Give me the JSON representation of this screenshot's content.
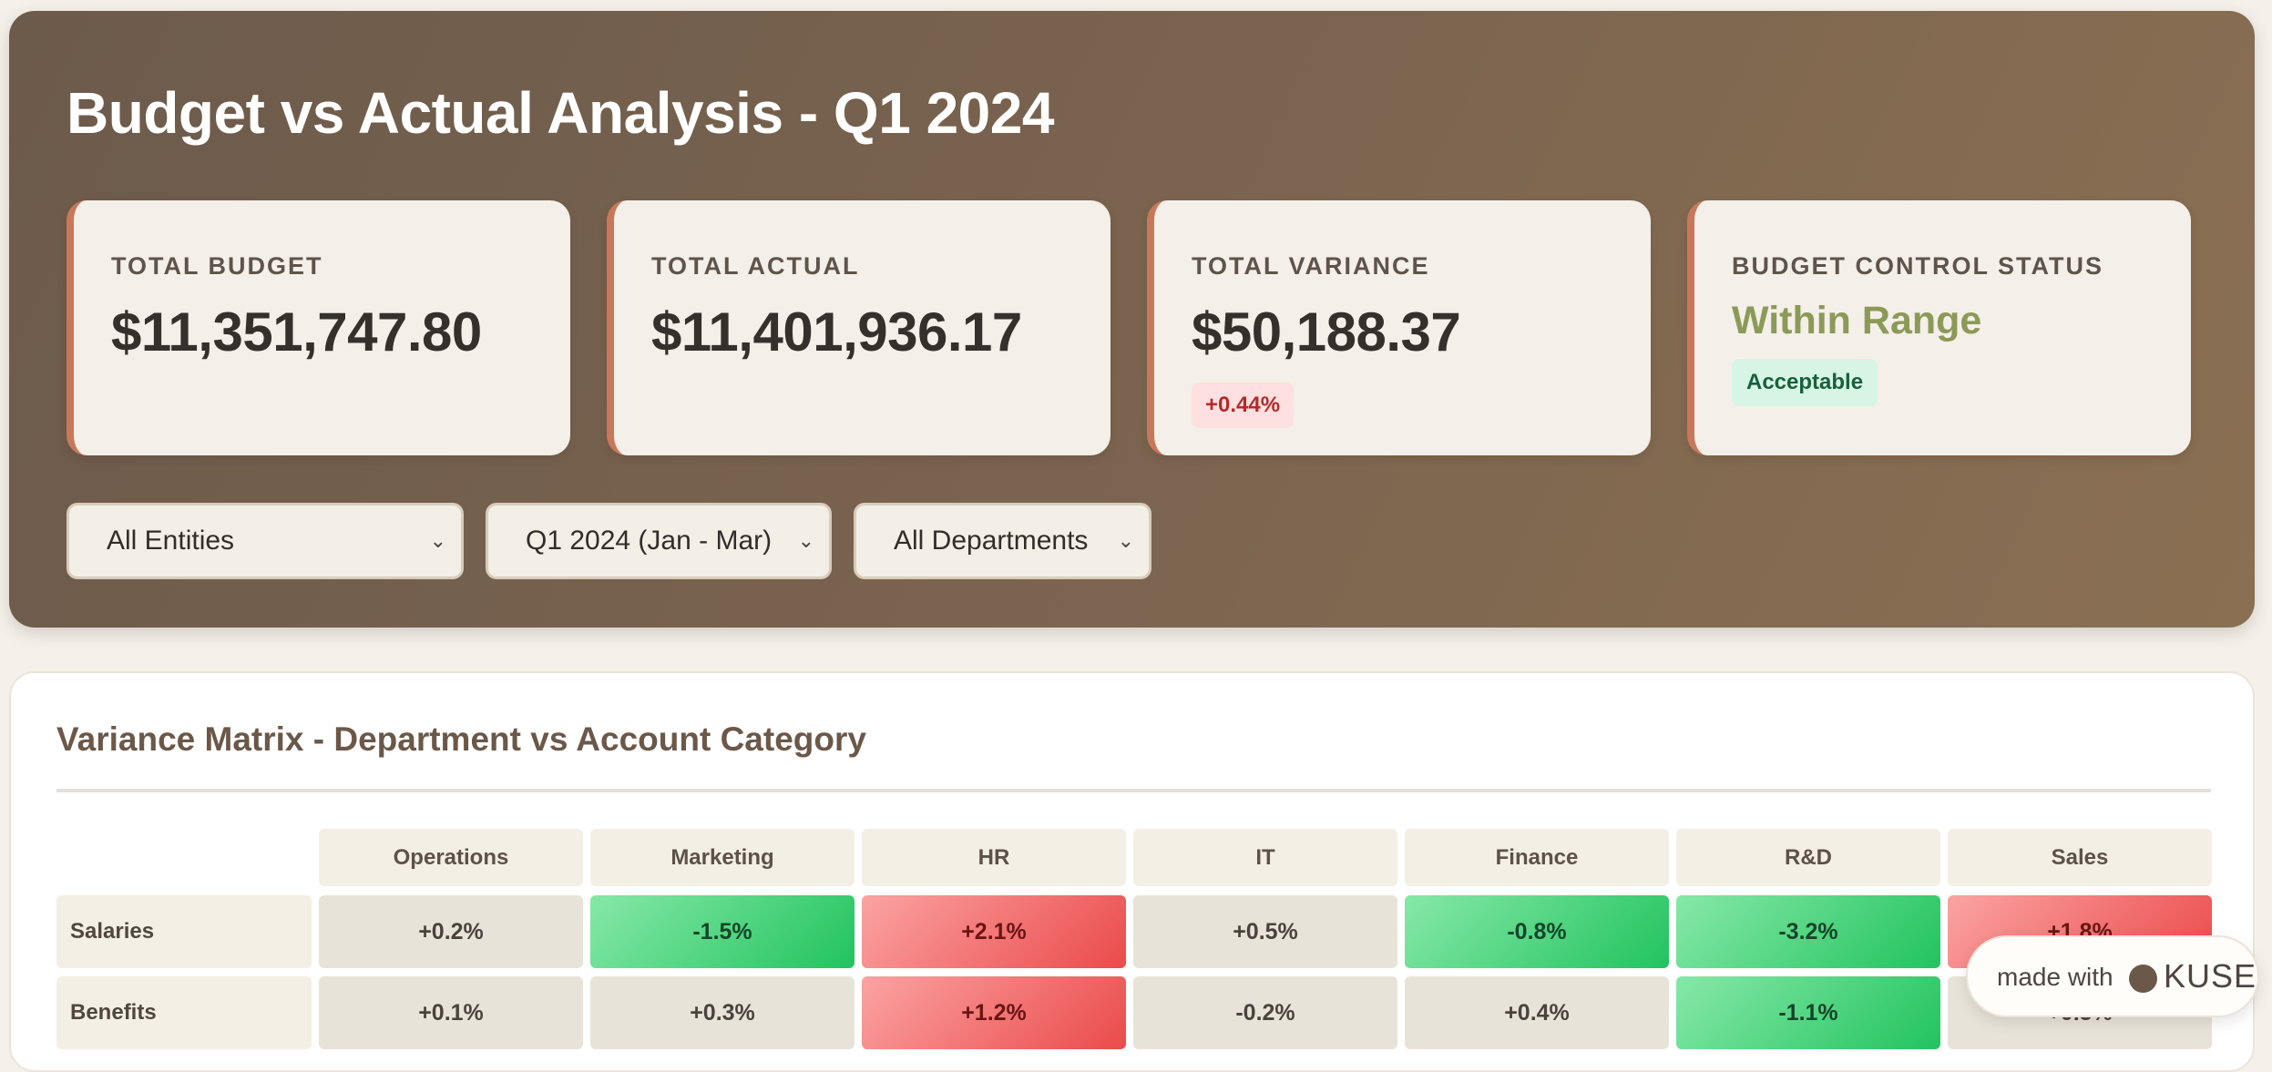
{
  "header": {
    "title": "Budget vs Actual Analysis - Q1 2024"
  },
  "kpis": {
    "total_budget": {
      "label": "TOTAL BUDGET",
      "value": "$11,351,747.80"
    },
    "total_actual": {
      "label": "TOTAL ACTUAL",
      "value": "$11,401,936.17"
    },
    "total_variance": {
      "label": "TOTAL VARIANCE",
      "value": "$50,188.37",
      "badge": "+0.44%"
    },
    "control_status": {
      "label": "BUDGET CONTROL STATUS",
      "value": "Within Range",
      "badge": "Acceptable"
    }
  },
  "filters": {
    "entity": {
      "selected": "All Entities"
    },
    "period": {
      "selected": "Q1 2024 (Jan - Mar)"
    },
    "department": {
      "selected": "All Departments"
    }
  },
  "matrix": {
    "title": "Variance Matrix - Department vs Account Category",
    "columns": [
      "Operations",
      "Marketing",
      "HR",
      "IT",
      "Finance",
      "R&D",
      "Sales"
    ],
    "rows": [
      {
        "label": "Salaries",
        "cells": [
          {
            "value": "+0.2%",
            "status": "neutral"
          },
          {
            "value": "-1.5%",
            "status": "good"
          },
          {
            "value": "+2.1%",
            "status": "bad"
          },
          {
            "value": "+0.5%",
            "status": "neutral"
          },
          {
            "value": "-0.8%",
            "status": "good"
          },
          {
            "value": "-3.2%",
            "status": "good"
          },
          {
            "value": "+1.8%",
            "status": "bad"
          }
        ]
      },
      {
        "label": "Benefits",
        "cells": [
          {
            "value": "+0.1%",
            "status": "neutral"
          },
          {
            "value": "+0.3%",
            "status": "neutral"
          },
          {
            "value": "+1.2%",
            "status": "bad"
          },
          {
            "value": "-0.2%",
            "status": "neutral"
          },
          {
            "value": "+0.4%",
            "status": "neutral"
          },
          {
            "value": "-1.1%",
            "status": "good"
          },
          {
            "value": "+0.5%",
            "status": "neutral"
          }
        ]
      }
    ]
  },
  "badge": {
    "prefix": "made with",
    "brand": "KUSE"
  },
  "colors": {
    "hero_gradient_start": "#6c5a4b",
    "hero_gradient_end": "#8a6f52",
    "card_accent": "#c8785a",
    "status_green": "#8b9a57",
    "favorable": "#22c35e",
    "unfavorable": "#eb4a4a",
    "neutral_cell": "#e8e3d9"
  },
  "icons": {
    "dropdown": "chevron-down-icon",
    "brand_mark": "kuse-logo-dot"
  }
}
